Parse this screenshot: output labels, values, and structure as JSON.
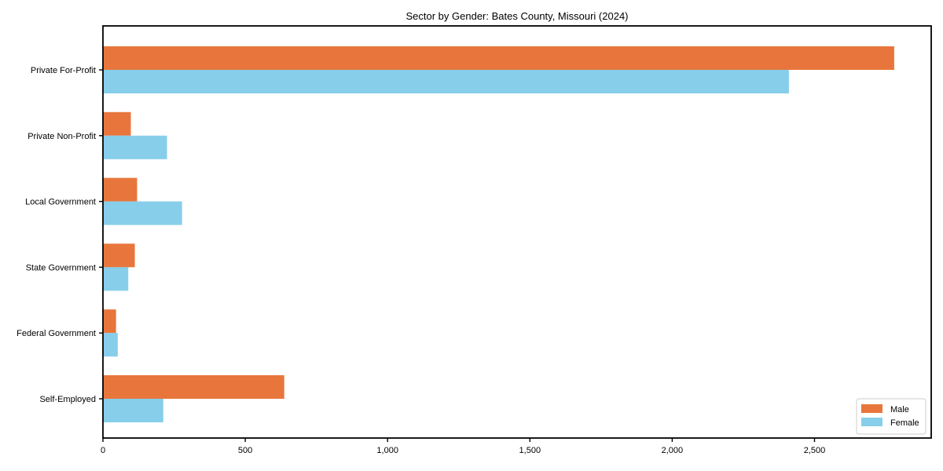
{
  "chart_data": {
    "type": "bar",
    "orientation": "horizontal",
    "title": "Sector by Gender: Bates County, Missouri (2024)",
    "categories": [
      "Private For-Profit",
      "Private Non-Profit",
      "Local Government",
      "State Government",
      "Federal Government",
      "Self-Employed"
    ],
    "series": [
      {
        "name": "Male",
        "color": "#e8763c",
        "values": [
          2780,
          98,
          120,
          112,
          46,
          637
        ]
      },
      {
        "name": "Female",
        "color": "#87ceeb",
        "values": [
          2410,
          225,
          278,
          89,
          52,
          212
        ]
      }
    ],
    "xlabel": "",
    "ylabel": "",
    "xlim": [
      0,
      2910
    ],
    "x_ticks": [
      0,
      500,
      1000,
      1500,
      2000,
      2500
    ],
    "x_tick_labels": [
      "0",
      "500",
      "1,000",
      "1,500",
      "2,000",
      "2,500"
    ],
    "grid": false,
    "legend_position": "lower-right",
    "plot_border_color": "#000000",
    "background_color": "#ffffff",
    "legend_border_color": "#cccccc"
  }
}
